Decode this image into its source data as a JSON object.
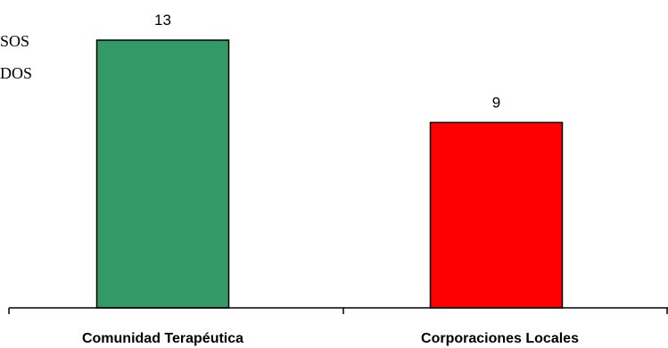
{
  "legend_fragments": [
    "SOS",
    "DOS"
  ],
  "chart_data": {
    "type": "bar",
    "title": "",
    "xlabel": "",
    "ylabel": "",
    "categories": [
      "Comunidad Terapéutica",
      "Corporaciones Locales"
    ],
    "values": [
      13,
      9
    ],
    "colors": [
      "#339966",
      "#ff0000"
    ],
    "ylim": [
      0,
      13
    ],
    "grid": false,
    "data_labels": [
      "13",
      "9"
    ]
  }
}
